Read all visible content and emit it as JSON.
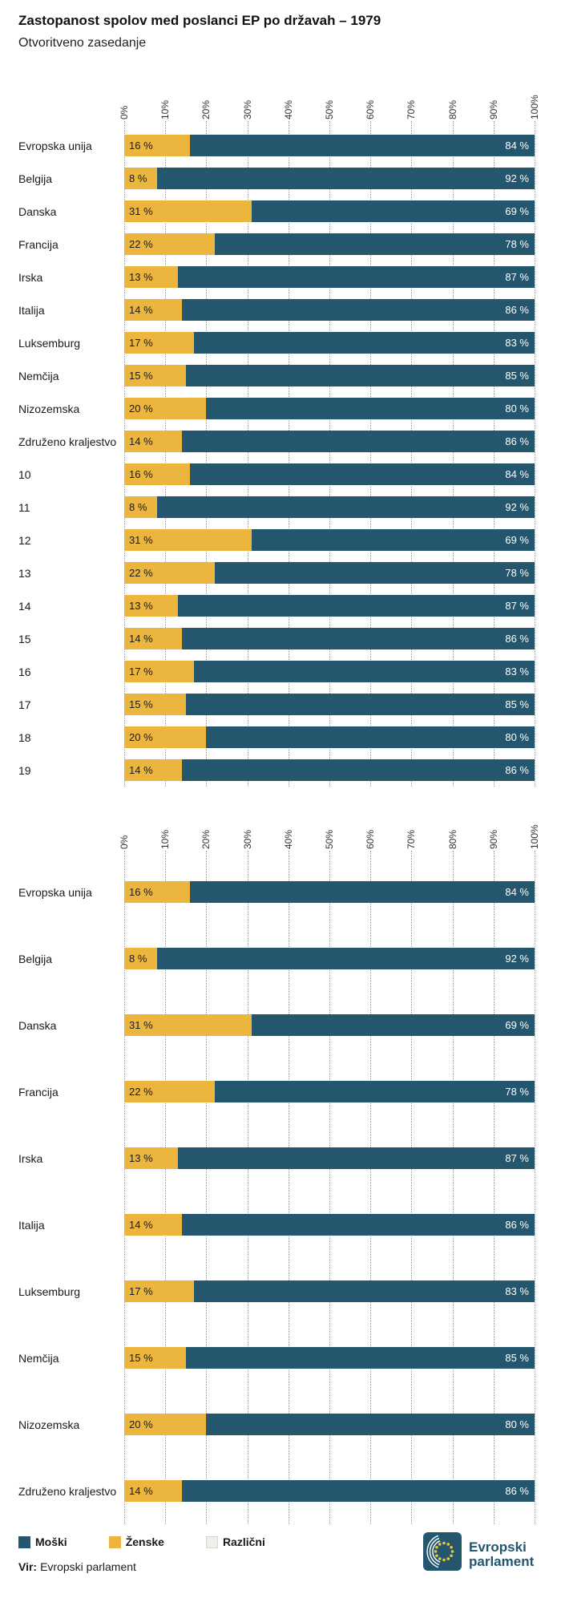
{
  "header": {
    "title": "Zastopanost spolov med poslanci EP po državah – 1979",
    "subtitle": "Otvoritveno zasedanje"
  },
  "chart_data": [
    {
      "type": "bar",
      "orientation": "horizontal",
      "stacked": true,
      "title": "Zastopanost spolov med poslanci EP po državah – 1979",
      "subtitle": "Otvoritveno zasedanje",
      "xlim": [
        0,
        100
      ],
      "x_ticks": [
        "0%",
        "10%",
        "20%",
        "30%",
        "40%",
        "50%",
        "60%",
        "70%",
        "80%",
        "90%",
        "100%"
      ],
      "grid": "dotted-vertical",
      "value_label_format": "{value} %",
      "categories": [
        "Evropska unija",
        "Belgija",
        "Danska",
        "Francija",
        "Irska",
        "Italija",
        "Luksemburg",
        "Nemčija",
        "Nizozemska",
        "Združeno kraljestvo",
        "10",
        "11",
        "12",
        "13",
        "14",
        "15",
        "16",
        "17",
        "18",
        "19"
      ],
      "series": [
        {
          "name": "Ženske",
          "color": "#ebb53e",
          "values": [
            16,
            8,
            31,
            22,
            13,
            14,
            17,
            15,
            20,
            14,
            16,
            8,
            31,
            22,
            13,
            14,
            17,
            15,
            20,
            14
          ]
        },
        {
          "name": "Moški",
          "color": "#24566e",
          "values": [
            84,
            92,
            69,
            78,
            87,
            86,
            83,
            85,
            80,
            86,
            84,
            92,
            69,
            78,
            87,
            86,
            83,
            85,
            80,
            86
          ]
        }
      ]
    },
    {
      "type": "bar",
      "orientation": "horizontal",
      "stacked": true,
      "xlim": [
        0,
        100
      ],
      "x_ticks": [
        "0%",
        "10%",
        "20%",
        "30%",
        "40%",
        "50%",
        "60%",
        "70%",
        "80%",
        "90%",
        "100%"
      ],
      "grid": "dotted-vertical",
      "value_label_format": "{value} %",
      "categories": [
        "Evropska unija",
        "Belgija",
        "Danska",
        "Francija",
        "Irska",
        "Italija",
        "Luksemburg",
        "Nemčija",
        "Nizozemska",
        "Združeno kraljestvo"
      ],
      "series": [
        {
          "name": "Ženske",
          "color": "#ebb53e",
          "values": [
            16,
            8,
            31,
            22,
            13,
            14,
            17,
            15,
            20,
            14
          ]
        },
        {
          "name": "Moški",
          "color": "#24566e",
          "values": [
            84,
            92,
            69,
            78,
            87,
            86,
            83,
            85,
            80,
            86
          ]
        }
      ]
    }
  ],
  "legend": {
    "position": "bottom",
    "items": [
      {
        "label": "Moški",
        "color": "#24566e"
      },
      {
        "label": "Ženske",
        "color": "#ebb53e"
      },
      {
        "label": "Različni",
        "color": "#f0efea",
        "border": "#d8d8d2"
      }
    ]
  },
  "source": {
    "prefix": "Vir:",
    "text": "Evropski parlament"
  },
  "logo": {
    "line1": "Evropski",
    "line2": "parlament"
  }
}
